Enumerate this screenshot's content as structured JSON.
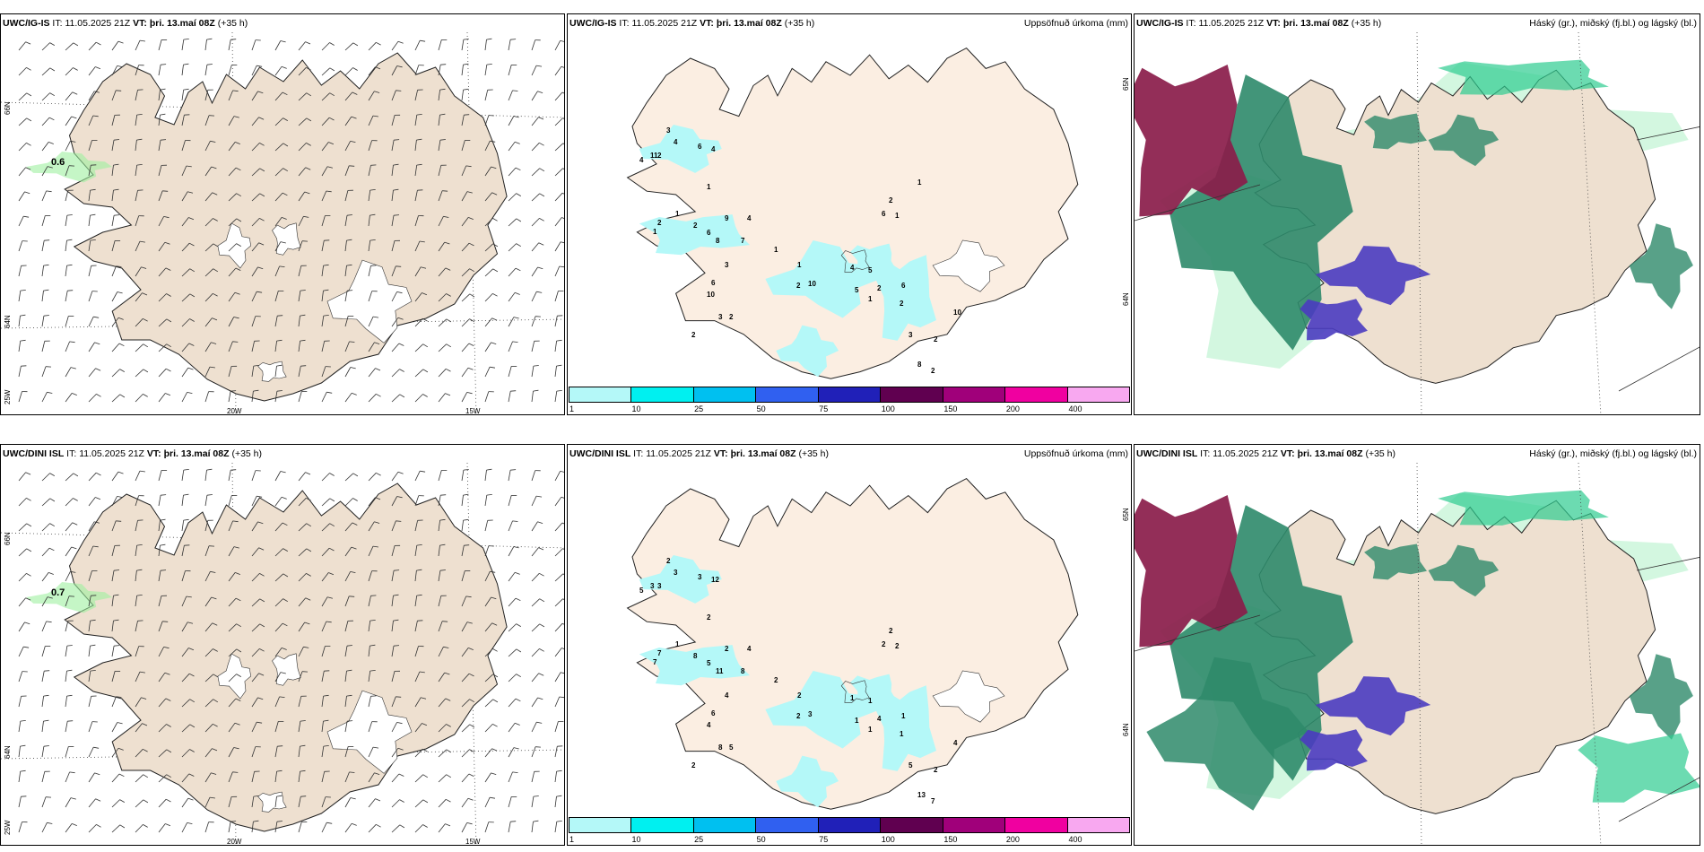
{
  "rows": [
    {
      "model": "UWC/IG-IS",
      "it_label": "IT:",
      "it_value": "11.05.2025 21Z",
      "vt_label": "VT:",
      "vt_value": "þri. 13.maí 08Z",
      "lead": "(+35 h)",
      "wind_value": "0.6"
    },
    {
      "model": "UWC/DINI ISL",
      "it_label": "IT:",
      "it_value": "11.05.2025 21Z",
      "vt_label": "VT:",
      "vt_value": "þri. 13.maí 08Z",
      "lead": "(+35 h)",
      "wind_value": "0.7"
    }
  ],
  "precip_title": "Uppsöfnuð úrkoma (mm)",
  "cloud_title": "Háský (gr.), miðský (fj.bl.) og lágský (bl.)",
  "lat_labels": [
    "66N",
    "64N",
    "25W"
  ],
  "lon_labels": [
    "20W",
    "15W"
  ],
  "precip_lat_labels": [
    "65N",
    "64N"
  ],
  "legend": {
    "colors": [
      "#b4f8f8",
      "#00f0f0",
      "#00c0f0",
      "#3060f0",
      "#2020b8",
      "#600050",
      "#a0007a",
      "#f000a0",
      "#f8a8f0"
    ],
    "ticks": [
      "1",
      "10",
      "25",
      "50",
      "75",
      "100",
      "150",
      "200",
      "400"
    ]
  },
  "precip_numbers_row1": [
    "3",
    "4",
    "11",
    "6",
    "4",
    "4",
    "2",
    "1",
    "1",
    "2",
    "2",
    "1",
    "9",
    "4",
    "6",
    "8",
    "7",
    "3",
    "6",
    "10",
    "3",
    "2",
    "2",
    "1",
    "1",
    "2",
    "10",
    "4",
    "5",
    "5",
    "2",
    "6",
    "1",
    "2",
    "3",
    "2",
    "8",
    "2",
    "10",
    "6",
    "2",
    "1",
    "1"
  ],
  "precip_numbers_row2": [
    "2",
    "3",
    "3",
    "3",
    "12",
    "5",
    "3",
    "2",
    "1",
    "7",
    "8",
    "7",
    "2",
    "4",
    "5",
    "11",
    "8",
    "4",
    "6",
    "4",
    "8",
    "2",
    "5",
    "2",
    "2",
    "2",
    "3",
    "1",
    "1",
    "1",
    "4",
    "1",
    "1",
    "1",
    "5",
    "2",
    "13",
    "7",
    "4",
    "2",
    "2",
    "2"
  ],
  "colors": {
    "land": "#eee0d0",
    "land_precip": "#fbeee2",
    "precip_light": "#b4f8f8",
    "cloud_high": "#8a1c4a",
    "cloud_mid": "#2e8a6a",
    "cloud_low": "#4a3cc0",
    "cloud_green": "#2ecc90"
  }
}
